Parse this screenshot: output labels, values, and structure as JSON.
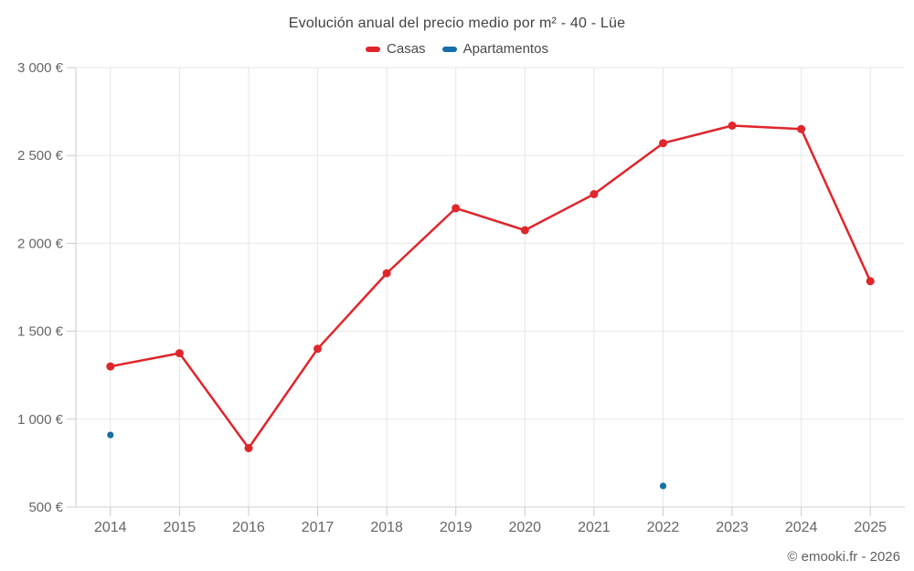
{
  "header": {
    "title": "Evolución anual del precio medio por m² - 40 - Lüe"
  },
  "chart_data": {
    "type": "line",
    "title": "Evolución anual del precio medio por m² - 40 - Lüe",
    "categories": [
      "2014",
      "2015",
      "2016",
      "2017",
      "2018",
      "2019",
      "2020",
      "2021",
      "2022",
      "2023",
      "2024",
      "2025"
    ],
    "series": [
      {
        "name": "Casas",
        "color": "#e0262b",
        "marker_radius": 4.5,
        "values": [
          1300,
          1375,
          835,
          1400,
          1830,
          2200,
          2075,
          2280,
          2570,
          2670,
          2650,
          1785
        ]
      },
      {
        "name": "Apartamentos",
        "color": "#156fa8",
        "marker_radius": 3.6,
        "values": [
          910,
          null,
          null,
          null,
          null,
          null,
          null,
          null,
          620,
          null,
          null,
          null
        ]
      }
    ],
    "xlabel": "",
    "ylabel": "",
    "ylim": [
      500,
      3000
    ],
    "yticks": {
      "values": [
        500,
        1000,
        1500,
        2000,
        2500,
        3000
      ],
      "labels": [
        "500 €",
        "1 000 €",
        "1 500 €",
        "2 000 €",
        "2 500 €",
        "3 000 €"
      ]
    },
    "grid": true,
    "legend_position": "top"
  },
  "colors": {
    "grid": "#e7e7e7",
    "axis_line": "#cccccc",
    "axis_label": "#666666",
    "title": "#424242",
    "footer": "#5f5f5f"
  },
  "footer": {
    "copyright": "© emooki.fr - 2026"
  }
}
